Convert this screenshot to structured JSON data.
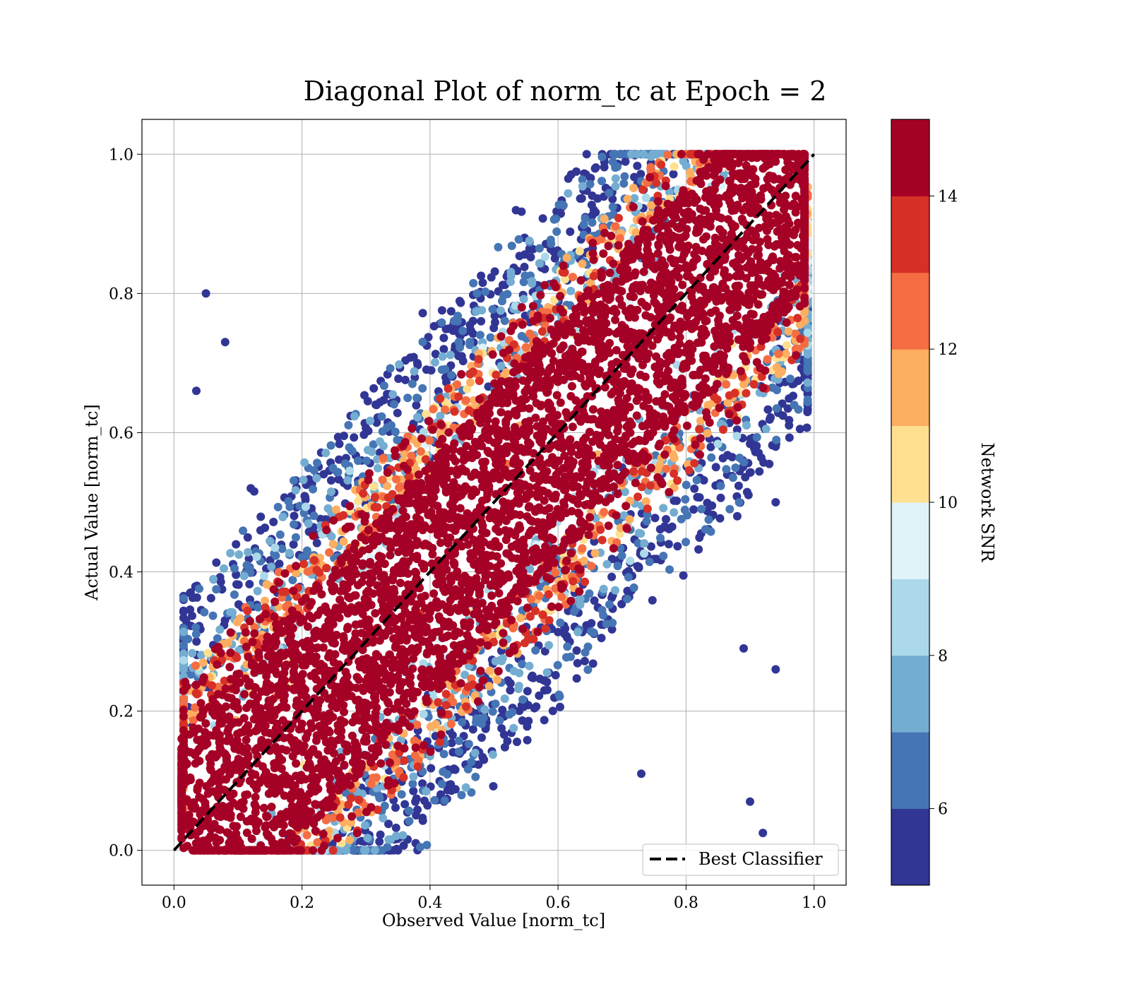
{
  "chart_data": {
    "type": "scatter",
    "title": "Diagonal Plot of norm_tc at Epoch = 2",
    "xlabel": "Observed Value [norm_tc]",
    "ylabel": "Actual Value [norm_tc]",
    "xlim": [
      -0.05,
      1.05
    ],
    "ylim": [
      -0.05,
      1.05
    ],
    "xticks": [
      "0.0",
      "0.2",
      "0.4",
      "0.6",
      "0.8",
      "1.0"
    ],
    "yticks": [
      "0.0",
      "0.2",
      "0.4",
      "0.6",
      "0.8",
      "1.0"
    ],
    "grid": true,
    "reference_line": {
      "label": "Best Classifier",
      "x": [
        0.0,
        1.0
      ],
      "y": [
        0.0,
        1.0
      ],
      "style": "dashed",
      "color": "#000000"
    },
    "legend": {
      "position": "lower right",
      "entries": [
        "Best Classifier"
      ]
    },
    "colorbar": {
      "label": "Network SNR",
      "range": [
        5,
        15
      ],
      "ticks": [
        "6",
        "8",
        "10",
        "12",
        "14"
      ],
      "colors": [
        "#313695",
        "#4575b4",
        "#74add1",
        "#abd9e9",
        "#e0f3f8",
        "#fee090",
        "#fdae61",
        "#f46d43",
        "#d73027",
        "#a50026"
      ]
    },
    "series": [
      {
        "description": "samples colored by Network SNR",
        "points": [
          [
            0.05,
            0.8
          ],
          [
            0.035,
            0.66
          ],
          [
            0.08,
            0.73
          ],
          [
            0.12,
            0.52
          ],
          [
            0.09,
            0.34
          ],
          [
            0.94,
            0.58
          ],
          [
            0.94,
            0.5
          ],
          [
            0.94,
            0.26
          ],
          [
            0.92,
            0.025
          ],
          [
            0.89,
            0.29
          ],
          [
            0.88,
            0.48
          ],
          [
            0.86,
            0.64
          ],
          [
            0.7,
            0.55
          ],
          [
            0.73,
            0.11
          ],
          [
            0.9,
            0.07
          ]
        ]
      }
    ]
  }
}
